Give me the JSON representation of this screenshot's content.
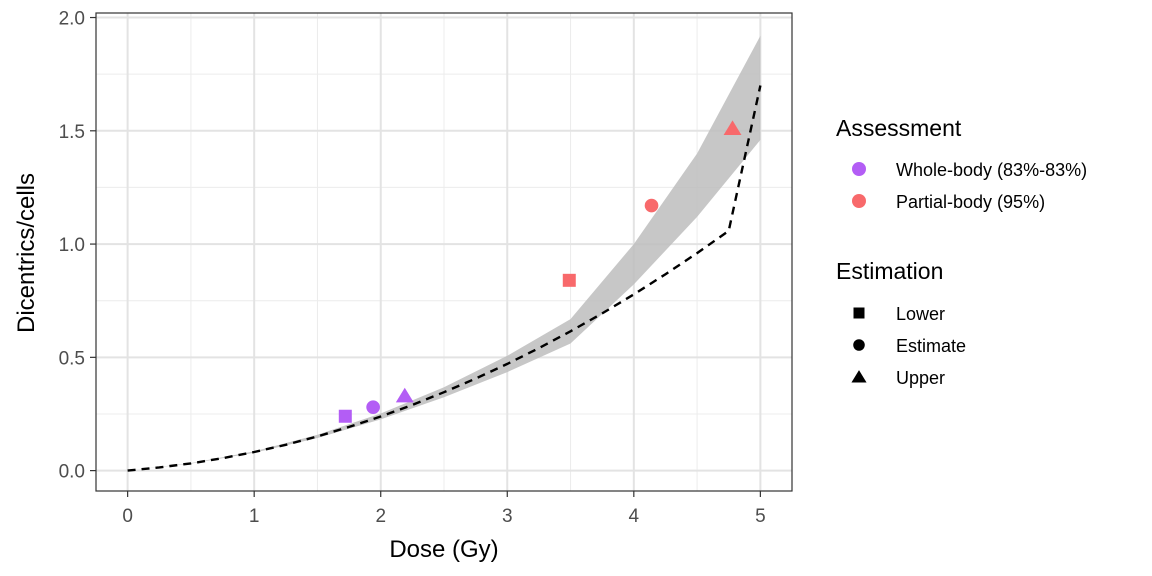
{
  "chart_data": {
    "type": "line",
    "xlabel": "Dose (Gy)",
    "ylabel": "Dicentrics/cells",
    "xlim": [
      -0.25,
      5.25
    ],
    "ylim": [
      -0.09,
      2.02
    ],
    "x_ticks": [
      0,
      1,
      2,
      3,
      4,
      5
    ],
    "x_tick_labels": [
      "0",
      "1",
      "2",
      "3",
      "4",
      "5"
    ],
    "y_ticks": [
      0,
      0.5,
      1,
      1.5,
      2
    ],
    "y_tick_labels": [
      "0.0",
      "0.5",
      "1.0",
      "1.5",
      "2.0"
    ],
    "grid": true,
    "curve": {
      "style": "dashed",
      "color": "#000000",
      "x": [
        0,
        0.25,
        0.5,
        0.75,
        1,
        1.25,
        1.5,
        1.75,
        2,
        2.25,
        2.5,
        2.75,
        3,
        3.25,
        3.5,
        3.75,
        4,
        4.25,
        4.5,
        4.75,
        5
      ],
      "y": [
        0,
        0.014,
        0.032,
        0.055,
        0.082,
        0.114,
        0.151,
        0.193,
        0.239,
        0.29,
        0.346,
        0.406,
        0.471,
        0.541,
        0.615,
        0.694,
        0.778,
        0.867,
        0.96,
        1.058,
        1.7
      ]
    },
    "band": {
      "color": "#bdbdbd",
      "x": [
        0,
        0.5,
        1,
        1.5,
        2,
        2.5,
        3,
        3.5,
        4,
        4.5,
        5
      ],
      "lower": [
        0,
        0.031,
        0.079,
        0.144,
        0.226,
        0.324,
        0.435,
        0.561,
        0.822,
        1.12,
        1.46
      ],
      "upper": [
        0,
        0.033,
        0.085,
        0.158,
        0.252,
        0.368,
        0.507,
        0.669,
        1.0,
        1.4,
        1.92
      ]
    },
    "series": [
      {
        "name": "Whole-body (83%-83%)",
        "color": "#b35df5",
        "points": [
          {
            "estimation": "Lower",
            "x": 1.72,
            "y": 0.24
          },
          {
            "estimation": "Estimate",
            "x": 1.94,
            "y": 0.28
          },
          {
            "estimation": "Upper",
            "x": 2.19,
            "y": 0.33
          }
        ]
      },
      {
        "name": "Partial-body (95%)",
        "color": "#f8696b",
        "points": [
          {
            "estimation": "Lower",
            "x": 3.49,
            "y": 0.84
          },
          {
            "estimation": "Estimate",
            "x": 4.14,
            "y": 1.17
          },
          {
            "estimation": "Upper",
            "x": 4.78,
            "y": 1.51
          }
        ]
      }
    ],
    "legend": {
      "placement": "right",
      "assessment_title": "Assessment",
      "assessment_entries": [
        {
          "label": "Whole-body (83%-83%)",
          "color": "#b35df5"
        },
        {
          "label": "Partial-body (95%)",
          "color": "#f8696b"
        }
      ],
      "estimation_title": "Estimation",
      "estimation_entries": [
        {
          "label": "Lower",
          "shape": "square"
        },
        {
          "label": "Estimate",
          "shape": "circle"
        },
        {
          "label": "Upper",
          "shape": "triangle"
        }
      ]
    }
  }
}
